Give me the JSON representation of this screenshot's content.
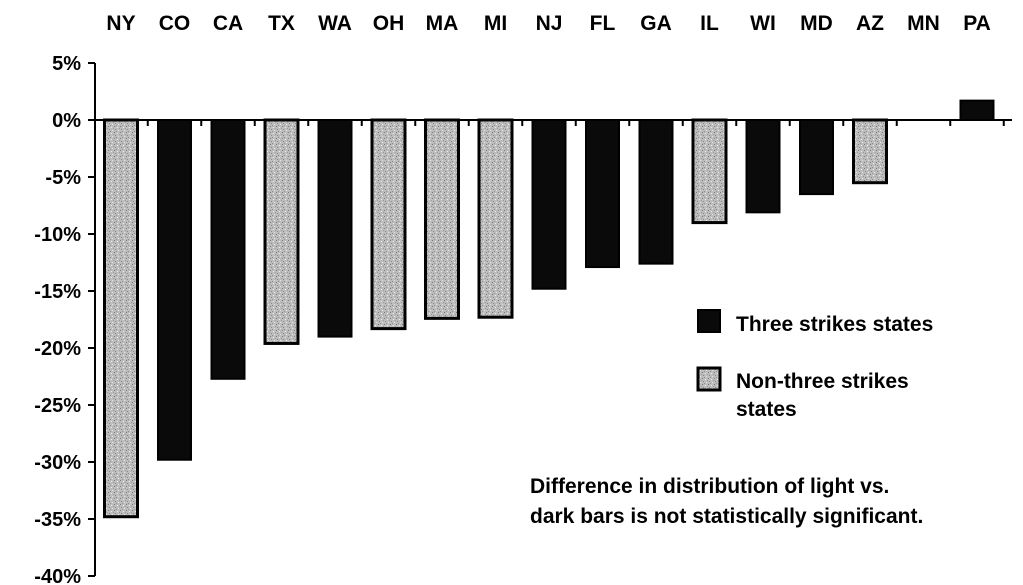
{
  "chart_data": {
    "type": "bar",
    "categories": [
      "NY",
      "CO",
      "CA",
      "TX",
      "WA",
      "OH",
      "MA",
      "MI",
      "NJ",
      "FL",
      "GA",
      "IL",
      "WI",
      "MD",
      "AZ",
      "MN",
      "PA"
    ],
    "values": [
      -34.8,
      -29.8,
      -22.7,
      -19.6,
      -19.0,
      -18.3,
      -17.4,
      -17.3,
      -14.8,
      -12.9,
      -12.6,
      -9.0,
      -8.1,
      -6.5,
      -5.5,
      0.0,
      1.7
    ],
    "group": [
      "non-three-strikes",
      "three-strikes",
      "three-strikes",
      "non-three-strikes",
      "three-strikes",
      "non-three-strikes",
      "non-three-strikes",
      "non-three-strikes",
      "three-strikes",
      "three-strikes",
      "three-strikes",
      "non-three-strikes",
      "three-strikes",
      "three-strikes",
      "non-three-strikes",
      "three-strikes",
      "three-strikes"
    ],
    "ylim": [
      -40,
      5
    ],
    "y_ticks": [
      5,
      0,
      -5,
      -10,
      -15,
      -20,
      -25,
      -30,
      -35,
      -40
    ],
    "y_tick_labels": [
      "5%",
      "0%",
      "-5%",
      "-10%",
      "-15%",
      "-20%",
      "-25%",
      "-30%",
      "-35%",
      "-40%"
    ],
    "category_labels_position": "top",
    "legend_position": "right",
    "legend": [
      {
        "name": "Three strikes states",
        "lines": [
          "Three strikes states"
        ],
        "key": "three-strikes"
      },
      {
        "name": "Non-three strikes states",
        "lines": [
          "Non-three strikes",
          "states"
        ],
        "key": "non-three-strikes"
      }
    ],
    "annotation": [
      "Difference in distribution of light vs.",
      "dark bars is not statistically significant."
    ],
    "colors": {
      "three-strikes": "#0a0a0a",
      "non-three-strikes": "#b9b9b9",
      "border": "#000000"
    }
  }
}
